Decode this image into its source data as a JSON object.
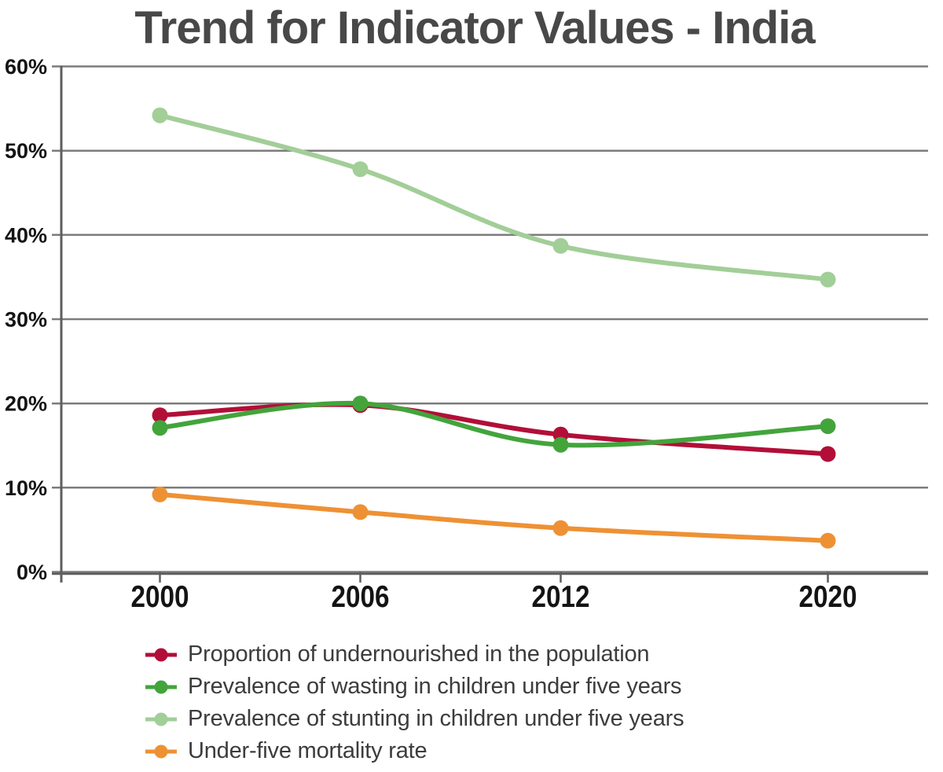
{
  "title": "Trend for Indicator Values - India",
  "chart_data": {
    "type": "line",
    "x": [
      2000,
      2006,
      2012,
      2020
    ],
    "x_tick_labels": [
      "2000",
      "2006",
      "2012",
      "2020"
    ],
    "ylim": [
      0,
      60
    ],
    "y_ticks": [
      0,
      10,
      20,
      30,
      40,
      50,
      60
    ],
    "y_tick_labels": [
      "0%",
      "10%",
      "20%",
      "30%",
      "40%",
      "50%",
      "60%"
    ],
    "grid": true,
    "legend_position": "bottom-left",
    "series": [
      {
        "name": "Proportion of undernourished in the population",
        "color": "#b20e38",
        "values": [
          18.6,
          19.8,
          16.3,
          14.0
        ]
      },
      {
        "name": "Prevalence of wasting in children under five years",
        "color": "#43a43c",
        "values": [
          17.1,
          20.0,
          15.1,
          17.3
        ]
      },
      {
        "name": "Prevalence of stunting in children under five years",
        "color": "#a2ce98",
        "values": [
          54.2,
          47.8,
          38.7,
          34.7
        ]
      },
      {
        "name": "Under-five mortality rate",
        "color": "#ee9134",
        "values": [
          9.2,
          7.1,
          5.2,
          3.7
        ]
      }
    ]
  },
  "colors": {
    "background": "#ffffff",
    "title_text": "#484848",
    "tick_label_text": "#141414",
    "legend_text": "#3c3c3c",
    "gridline": "#7c7c7c",
    "axis_line": "#5e5e5e"
  }
}
